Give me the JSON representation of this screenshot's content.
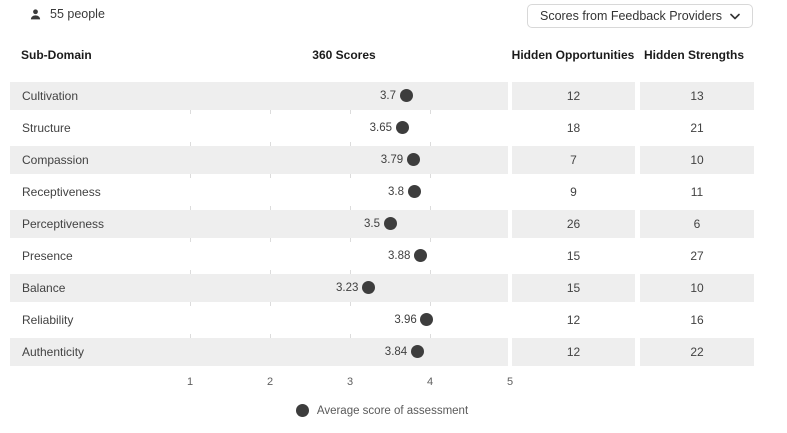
{
  "header": {
    "people_count": "55 people",
    "dropdown_label": "Scores from Feedback Providers"
  },
  "columns": {
    "sub_domain": "Sub-Domain",
    "scores": "360 Scores",
    "hidden_opportunities": "Hidden Opportunities",
    "hidden_strengths": "Hidden Strengths"
  },
  "rows": [
    {
      "label": "Cultivation",
      "score": "3.7",
      "score_value": 3.7,
      "hidden_opportunities": "12",
      "hidden_strengths": "13"
    },
    {
      "label": "Structure",
      "score": "3.65",
      "score_value": 3.65,
      "hidden_opportunities": "18",
      "hidden_strengths": "21"
    },
    {
      "label": "Compassion",
      "score": "3.79",
      "score_value": 3.79,
      "hidden_opportunities": "7",
      "hidden_strengths": "10"
    },
    {
      "label": "Receptiveness",
      "score": "3.8",
      "score_value": 3.8,
      "hidden_opportunities": "9",
      "hidden_strengths": "11"
    },
    {
      "label": "Perceptiveness",
      "score": "3.5",
      "score_value": 3.5,
      "hidden_opportunities": "26",
      "hidden_strengths": "6"
    },
    {
      "label": "Presence",
      "score": "3.88",
      "score_value": 3.88,
      "hidden_opportunities": "15",
      "hidden_strengths": "27"
    },
    {
      "label": "Balance",
      "score": "3.23",
      "score_value": 3.23,
      "hidden_opportunities": "15",
      "hidden_strengths": "10"
    },
    {
      "label": "Reliability",
      "score": "3.96",
      "score_value": 3.96,
      "hidden_opportunities": "12",
      "hidden_strengths": "16"
    },
    {
      "label": "Authenticity",
      "score": "3.84",
      "score_value": 3.84,
      "hidden_opportunities": "12",
      "hidden_strengths": "22"
    }
  ],
  "chart_data": {
    "type": "scatter",
    "title": "360 Scores",
    "categories": [
      "Cultivation",
      "Structure",
      "Compassion",
      "Receptiveness",
      "Perceptiveness",
      "Presence",
      "Balance",
      "Reliability",
      "Authenticity"
    ],
    "series": [
      {
        "name": "Average score of assessment",
        "values": [
          3.7,
          3.65,
          3.79,
          3.8,
          3.5,
          3.88,
          3.23,
          3.96,
          3.84
        ]
      },
      {
        "name": "Hidden Opportunities",
        "values": [
          12,
          18,
          7,
          9,
          26,
          15,
          15,
          12,
          12
        ]
      },
      {
        "name": "Hidden Strengths",
        "values": [
          13,
          21,
          10,
          11,
          6,
          27,
          10,
          16,
          22
        ]
      }
    ],
    "x_ticks": [
      "1",
      "2",
      "3",
      "4",
      "5"
    ],
    "xlim": [
      1,
      5
    ],
    "grid": true,
    "legend_position": "bottom"
  },
  "legend": {
    "label": "Average score of assessment"
  },
  "colors": {
    "row_alt_background": "#eeeeee",
    "dot": "#3d3d3d",
    "gridline": "#dcdcdc",
    "header_text": "#1b1b1b",
    "body_text": "#424242",
    "dropdown_border": "#d8d8d8"
  }
}
